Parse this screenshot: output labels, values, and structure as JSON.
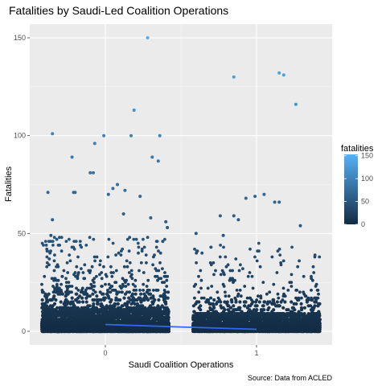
{
  "chart_data": {
    "type": "scatter",
    "title": "Fatalities by Saudi-Led Coalition Operations",
    "xlabel": "Saudi Coalition Operations",
    "ylabel": "Fatalities",
    "caption": "Source: Data from ACLED",
    "x_categories": [
      "0",
      "1"
    ],
    "x_ticks": [
      0,
      1
    ],
    "x_range": [
      -0.5,
      1.5
    ],
    "y_ticks": [
      0,
      50,
      100,
      150
    ],
    "ylim": [
      -7,
      157
    ],
    "jitter_width": 0.42,
    "grid": true,
    "legend": {
      "title": "fatalities",
      "position": "right",
      "ticks": [
        0,
        50,
        100,
        150
      ],
      "range": [
        0,
        153
      ],
      "colors": {
        "low": "#132b43",
        "high": "#56b1f7"
      }
    },
    "trend_color": "#3366ff",
    "trend": {
      "x": [
        0,
        0.5,
        1
      ],
      "y": [
        3.5,
        2.2,
        1.0
      ]
    },
    "notable_points": [
      {
        "x": 0.28,
        "y": 150
      },
      {
        "x": -0.35,
        "y": 101
      },
      {
        "x": -0.01,
        "y": 100
      },
      {
        "x": 0.17,
        "y": 100
      },
      {
        "x": 0.36,
        "y": 100
      },
      {
        "x": 0.19,
        "y": 113
      },
      {
        "x": -0.22,
        "y": 89
      },
      {
        "x": -0.07,
        "y": 96
      },
      {
        "x": 0.31,
        "y": 89
      },
      {
        "x": 0.35,
        "y": 87
      },
      {
        "x": -0.1,
        "y": 81
      },
      {
        "x": -0.08,
        "y": 81
      },
      {
        "x": 0.08,
        "y": 75
      },
      {
        "x": -0.38,
        "y": 71
      },
      {
        "x": -0.2,
        "y": 71
      },
      {
        "x": -0.21,
        "y": 71
      },
      {
        "x": 0.02,
        "y": 70
      },
      {
        "x": 0.05,
        "y": 73
      },
      {
        "x": 0.13,
        "y": 72
      },
      {
        "x": 0.23,
        "y": 69
      },
      {
        "x": 0.85,
        "y": 130
      },
      {
        "x": 1.15,
        "y": 132
      },
      {
        "x": 1.18,
        "y": 131
      },
      {
        "x": 1.26,
        "y": 116
      },
      {
        "x": 1.12,
        "y": 66
      },
      {
        "x": 1.15,
        "y": 66
      },
      {
        "x": 0.93,
        "y": 68
      },
      {
        "x": 0.99,
        "y": 69
      },
      {
        "x": 1.05,
        "y": 70
      },
      {
        "x": 1.29,
        "y": 54
      },
      {
        "x": 0.85,
        "y": 59
      },
      {
        "x": 0.88,
        "y": 57
      },
      {
        "x": 0.76,
        "y": 59
      },
      {
        "x": 0.6,
        "y": 50
      },
      {
        "x": 0.78,
        "y": 49
      },
      {
        "x": -0.35,
        "y": 57
      },
      {
        "x": -0.36,
        "y": 49
      },
      {
        "x": 0.4,
        "y": 56
      },
      {
        "x": 0.41,
        "y": 53
      },
      {
        "x": 0.38,
        "y": 46
      },
      {
        "x": 0.3,
        "y": 58
      },
      {
        "x": 0.12,
        "y": 60
      }
    ]
  }
}
